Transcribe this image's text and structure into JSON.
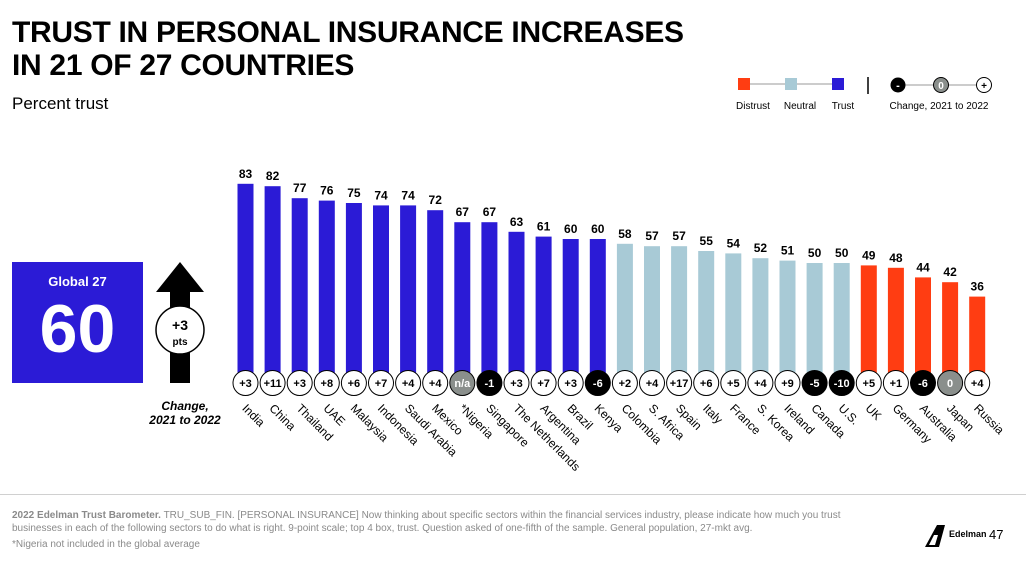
{
  "title_line1": "TRUST IN PERSONAL INSURANCE INCREASES",
  "title_line2": "IN 21 OF 27 COUNTRIES",
  "subtitle": "Percent trust",
  "global": {
    "label": "Global 27",
    "value": "60",
    "change": "+3",
    "change_unit": "pts"
  },
  "change_label_line1": "Change,",
  "change_label_line2": "2021 to 2022",
  "legend": {
    "distrust": "Distrust",
    "neutral": "Neutral",
    "trust": "Trust",
    "change_title": "Change, 2021 to 2022",
    "change_minus": "-",
    "change_zero": "0",
    "change_plus": "+"
  },
  "colors": {
    "trust": "#2b1bd6",
    "neutral": "#a8cad6",
    "distrust": "#ff3d12",
    "positive_badge": "#ffffff",
    "negative_badge": "#000000",
    "zero_badge": "#8a8f8c"
  },
  "footer": {
    "source_bold": "2022 Edelman Trust Barometer.",
    "source_text": " TRU_SUB_FIN. [PERSONAL INSURANCE] Now thinking about specific sectors within the financial services industry, please indicate how much you trust businesses in each of the following sectors to do what is right. 9-point scale; top 4 box, trust. Question asked of one-fifth of the sample. General population, 27-mkt avg.",
    "footnote": "*Nigeria not included in the global average",
    "brand": "Edelman",
    "page": "47"
  },
  "chart_data": {
    "type": "bar",
    "title": "TRUST IN PERSONAL INSURANCE INCREASES IN 21 OF 27 COUNTRIES",
    "ylabel": "Percent trust",
    "ylim": [
      0,
      100
    ],
    "grid": false,
    "categories": [
      "India",
      "China",
      "Thailand",
      "UAE",
      "Malaysia",
      "Indonesia",
      "Saudi Arabia",
      "Mexico",
      "*Nigeria",
      "Singapore",
      "The Netherlands",
      "Argentina",
      "Brazil",
      "Kenya",
      "Colombia",
      "S. Africa",
      "Spain",
      "Italy",
      "France",
      "S. Korea",
      "Ireland",
      "Canada",
      "U.S.",
      "UK",
      "Germany",
      "Australia",
      "Japan",
      "Russia"
    ],
    "values": [
      83,
      82,
      77,
      76,
      75,
      74,
      74,
      72,
      67,
      67,
      63,
      61,
      60,
      60,
      58,
      57,
      57,
      55,
      54,
      52,
      51,
      50,
      50,
      49,
      48,
      44,
      42,
      36
    ],
    "category_type": [
      "trust",
      "trust",
      "trust",
      "trust",
      "trust",
      "trust",
      "trust",
      "trust",
      "trust",
      "trust",
      "trust",
      "trust",
      "trust",
      "trust",
      "neutral",
      "neutral",
      "neutral",
      "neutral",
      "neutral",
      "neutral",
      "neutral",
      "neutral",
      "neutral",
      "distrust",
      "distrust",
      "distrust",
      "distrust",
      "distrust"
    ],
    "change": [
      "+3",
      "+11",
      "+3",
      "+8",
      "+6",
      "+7",
      "+4",
      "+4",
      "n/a",
      "-1",
      "+3",
      "+7",
      "+3",
      "-6",
      "+2",
      "+4",
      "+17",
      "+6",
      "+5",
      "+4",
      "+9",
      "-5",
      "-10",
      "+5",
      "+1",
      "-6",
      "0",
      "+4"
    ]
  }
}
